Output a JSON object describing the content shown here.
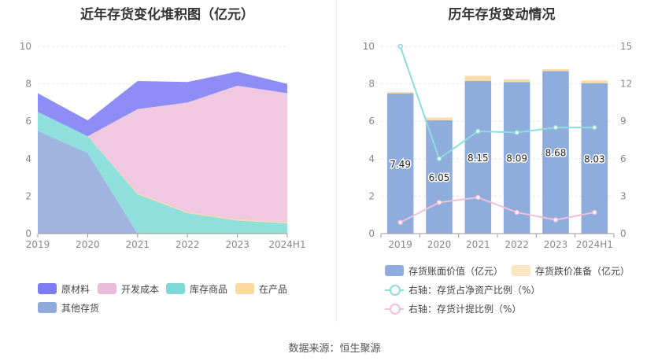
{
  "left_chart": {
    "title": "近年存货变化堆积图（亿元）",
    "chart_data": {
      "type": "area",
      "stacked": true,
      "categories": [
        "2019",
        "2020",
        "2021",
        "2022",
        "2023",
        "2024H1"
      ],
      "ylim": [
        0,
        10
      ],
      "yticks": [
        "0",
        "2",
        "4",
        "6",
        "8",
        "10"
      ],
      "series": [
        {
          "name": "其他存货",
          "color": "#9fb5e0",
          "values": [
            5.5,
            4.3,
            0,
            0,
            0,
            0
          ]
        },
        {
          "name": "库存商品",
          "color": "#8fe0dc",
          "values": [
            1.0,
            0.9,
            2.1,
            1.1,
            0.7,
            0.55
          ]
        },
        {
          "name": "在产品",
          "color": "#fcd9a0",
          "values": [
            0,
            0,
            0.05,
            0.05,
            0.05,
            0.05
          ]
        },
        {
          "name": "开发成本",
          "color": "#f0c8e0",
          "values": [
            0,
            0,
            4.5,
            5.85,
            7.15,
            6.9
          ]
        },
        {
          "name": "原材料",
          "color": "#8d8df5",
          "values": [
            1.0,
            0.85,
            1.5,
            1.1,
            0.75,
            0.5
          ]
        }
      ]
    },
    "legend": [
      {
        "label": "原材料",
        "color": "#7b7df0"
      },
      {
        "label": "开发成本",
        "color": "#e9bcdb"
      },
      {
        "label": "库存商品",
        "color": "#7fd9d6"
      },
      {
        "label": "在产品",
        "color": "#fcd9a0"
      },
      {
        "label": "其他存货",
        "color": "#8fa9dc"
      }
    ]
  },
  "right_chart": {
    "title": "历年存货变动情况",
    "chart_data": {
      "type": "bar",
      "categories": [
        "2019",
        "2020",
        "2021",
        "2022",
        "2023",
        "2024H1"
      ],
      "ylim": [
        0,
        10
      ],
      "yticks": [
        "0",
        "2",
        "4",
        "6",
        "8",
        "10"
      ],
      "y2lim": [
        0,
        15
      ],
      "y2ticks": [
        "0",
        "3",
        "6",
        "9",
        "12",
        "15"
      ],
      "series": [
        {
          "name": "存货账面价值（亿元）",
          "color": "#8eacdc",
          "values": [
            7.49,
            6.05,
            8.15,
            8.09,
            8.68,
            8.03
          ],
          "labels": [
            "7.49",
            "6.05",
            "8.15",
            "8.09",
            "8.68",
            "8.03"
          ]
        },
        {
          "name": "存货跌价准备（亿元）",
          "color": "#fcdca8",
          "values": [
            0.07,
            0.15,
            0.28,
            0.15,
            0.1,
            0.15
          ]
        },
        {
          "name": "右轴：存货占净资产比例（%）",
          "color": "#8fdcdc",
          "axis": "right",
          "values": [
            15.0,
            6.0,
            8.2,
            8.1,
            8.5,
            8.5
          ]
        },
        {
          "name": "右轴：存货计提比例（%）",
          "color": "#f0c0dc",
          "axis": "right",
          "values": [
            0.9,
            2.5,
            2.9,
            1.7,
            1.1,
            1.7
          ]
        }
      ]
    },
    "legend": [
      {
        "label": "存货账面价值（亿元）",
        "color": "#8eacdc",
        "kind": "box"
      },
      {
        "label": "存货跌价准备（亿元）",
        "color": "#fde6c2",
        "kind": "box"
      },
      {
        "label": "右轴：存货占净资产比例（%）",
        "color": "#8fdcdc",
        "kind": "line"
      },
      {
        "label": "右轴：存货计提比例（%）",
        "color": "#f0c0dc",
        "kind": "line"
      }
    ]
  },
  "source": "数据来源：恒生聚源"
}
